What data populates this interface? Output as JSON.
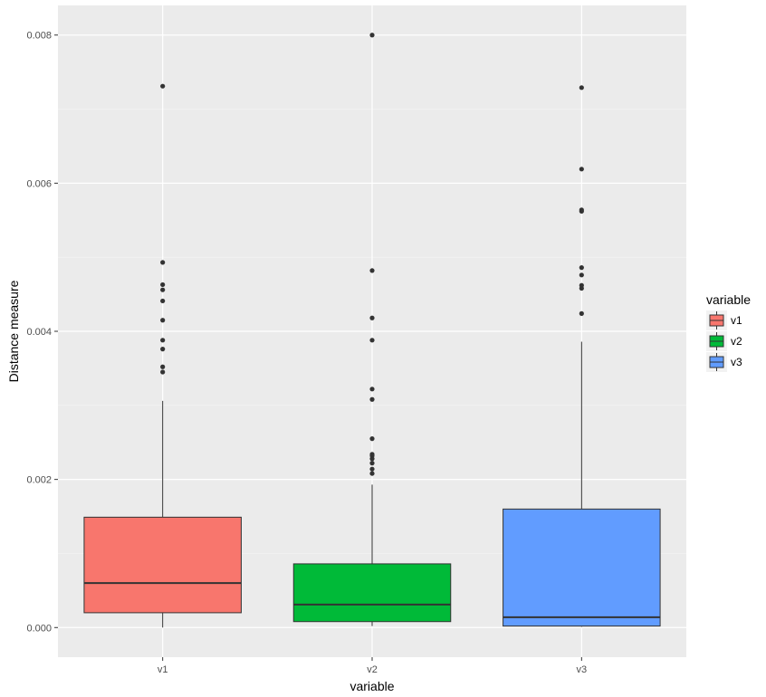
{
  "chart_data": {
    "type": "box",
    "xlabel": "variable",
    "ylabel": "Distance measure",
    "categories": [
      "v1",
      "v2",
      "v3"
    ],
    "ylim": [
      -0.0004,
      0.0084
    ],
    "yticks": [
      0.0,
      0.002,
      0.004,
      0.006,
      0.008
    ],
    "ytick_labels": [
      "0.000",
      "0.002",
      "0.004",
      "0.006",
      "0.008"
    ],
    "grid": true,
    "legend": {
      "title": "variable",
      "position": "right",
      "items": [
        "v1",
        "v2",
        "v3"
      ]
    },
    "series": [
      {
        "category": "v1",
        "color": "#F8766D",
        "min": 0.0,
        "q1": 0.0002,
        "median": 0.0006,
        "q3": 0.00149,
        "max": 0.00306,
        "outliers": [
          0.00345,
          0.00352,
          0.00376,
          0.00388,
          0.00415,
          0.00441,
          0.00456,
          0.00463,
          0.00493,
          0.00731
        ]
      },
      {
        "category": "v2",
        "color": "#00BA38",
        "min": 2e-05,
        "q1": 8e-05,
        "median": 0.00031,
        "q3": 0.00086,
        "max": 0.00193,
        "outliers": [
          0.00208,
          0.00214,
          0.00222,
          0.00228,
          0.00232,
          0.00234,
          0.00255,
          0.00308,
          0.00322,
          0.00388,
          0.00418,
          0.00482,
          0.008
        ]
      },
      {
        "category": "v3",
        "color": "#619CFF",
        "min": 1e-05,
        "q1": 2e-05,
        "median": 0.00014,
        "q3": 0.0016,
        "max": 0.00386,
        "outliers": [
          0.00424,
          0.00458,
          0.00462,
          0.00476,
          0.00486,
          0.00562,
          0.00564,
          0.00619,
          0.00729
        ]
      }
    ]
  }
}
